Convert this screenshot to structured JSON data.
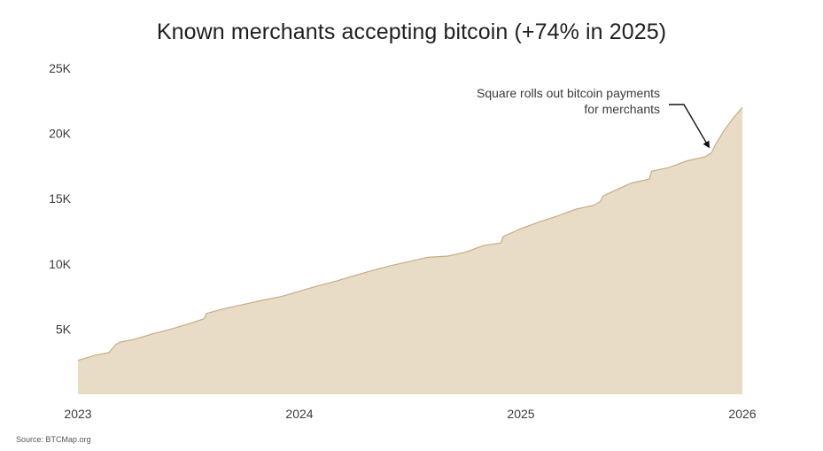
{
  "title": "Known merchants accepting bitcoin (+74% in 2025)",
  "source": "Source: BTCMap.org",
  "colors": {
    "area_fill": "#e9dcc6",
    "area_line": "#c7ab86",
    "text": "#3a3a3a",
    "annotation_arrow": "#111111"
  },
  "chart_data": {
    "type": "area",
    "title": "Known merchants accepting bitcoin (+74% in 2025)",
    "xlabel": "",
    "ylabel": "",
    "xlim": [
      2023.0,
      2026.0
    ],
    "ylim": [
      0,
      25000
    ],
    "grid": false,
    "legend": "none",
    "x_ticks": [
      {
        "value": 2023,
        "label": "2023"
      },
      {
        "value": 2024,
        "label": "2024"
      },
      {
        "value": 2025,
        "label": "2025"
      },
      {
        "value": 2026,
        "label": "2026"
      }
    ],
    "y_ticks": [
      {
        "value": 5000,
        "label": "5K"
      },
      {
        "value": 10000,
        "label": "10K"
      },
      {
        "value": 15000,
        "label": "15K"
      },
      {
        "value": 20000,
        "label": "20K"
      },
      {
        "value": 25000,
        "label": "25K"
      }
    ],
    "series": [
      {
        "x": [
          2023.0,
          2023.08,
          2023.14,
          2023.17,
          2023.19,
          2023.25,
          2023.33,
          2023.42,
          2023.52,
          2023.57,
          2023.58,
          2023.67,
          2023.75,
          2023.83,
          2023.92,
          2024.0,
          2024.08,
          2024.17,
          2024.25,
          2024.33,
          2024.42,
          2024.5,
          2024.58,
          2024.67,
          2024.75,
          2024.83,
          2024.91,
          2024.92,
          2024.96,
          2025.0,
          2025.08,
          2025.17,
          2025.25,
          2025.33,
          2025.36,
          2025.37,
          2025.42,
          2025.5,
          2025.58,
          2025.59,
          2025.67,
          2025.75,
          2025.83,
          2025.86,
          2025.88,
          2025.92,
          2025.96,
          2026.0
        ],
        "y": [
          2600,
          3000,
          3200,
          3800,
          4000,
          4200,
          4600,
          5000,
          5500,
          5800,
          6200,
          6600,
          6900,
          7200,
          7500,
          7900,
          8300,
          8700,
          9100,
          9500,
          9900,
          10200,
          10500,
          10600,
          10900,
          11400,
          11600,
          12100,
          12400,
          12700,
          13200,
          13700,
          14200,
          14500,
          14800,
          15200,
          15600,
          16200,
          16500,
          17100,
          17400,
          17900,
          18200,
          18500,
          19200,
          20300,
          21200,
          22000
        ]
      }
    ],
    "annotations": [
      {
        "lines": [
          "Square rolls out bitcoin payments",
          "for merchants"
        ],
        "x": 2025.86,
        "y": 18500
      }
    ]
  }
}
